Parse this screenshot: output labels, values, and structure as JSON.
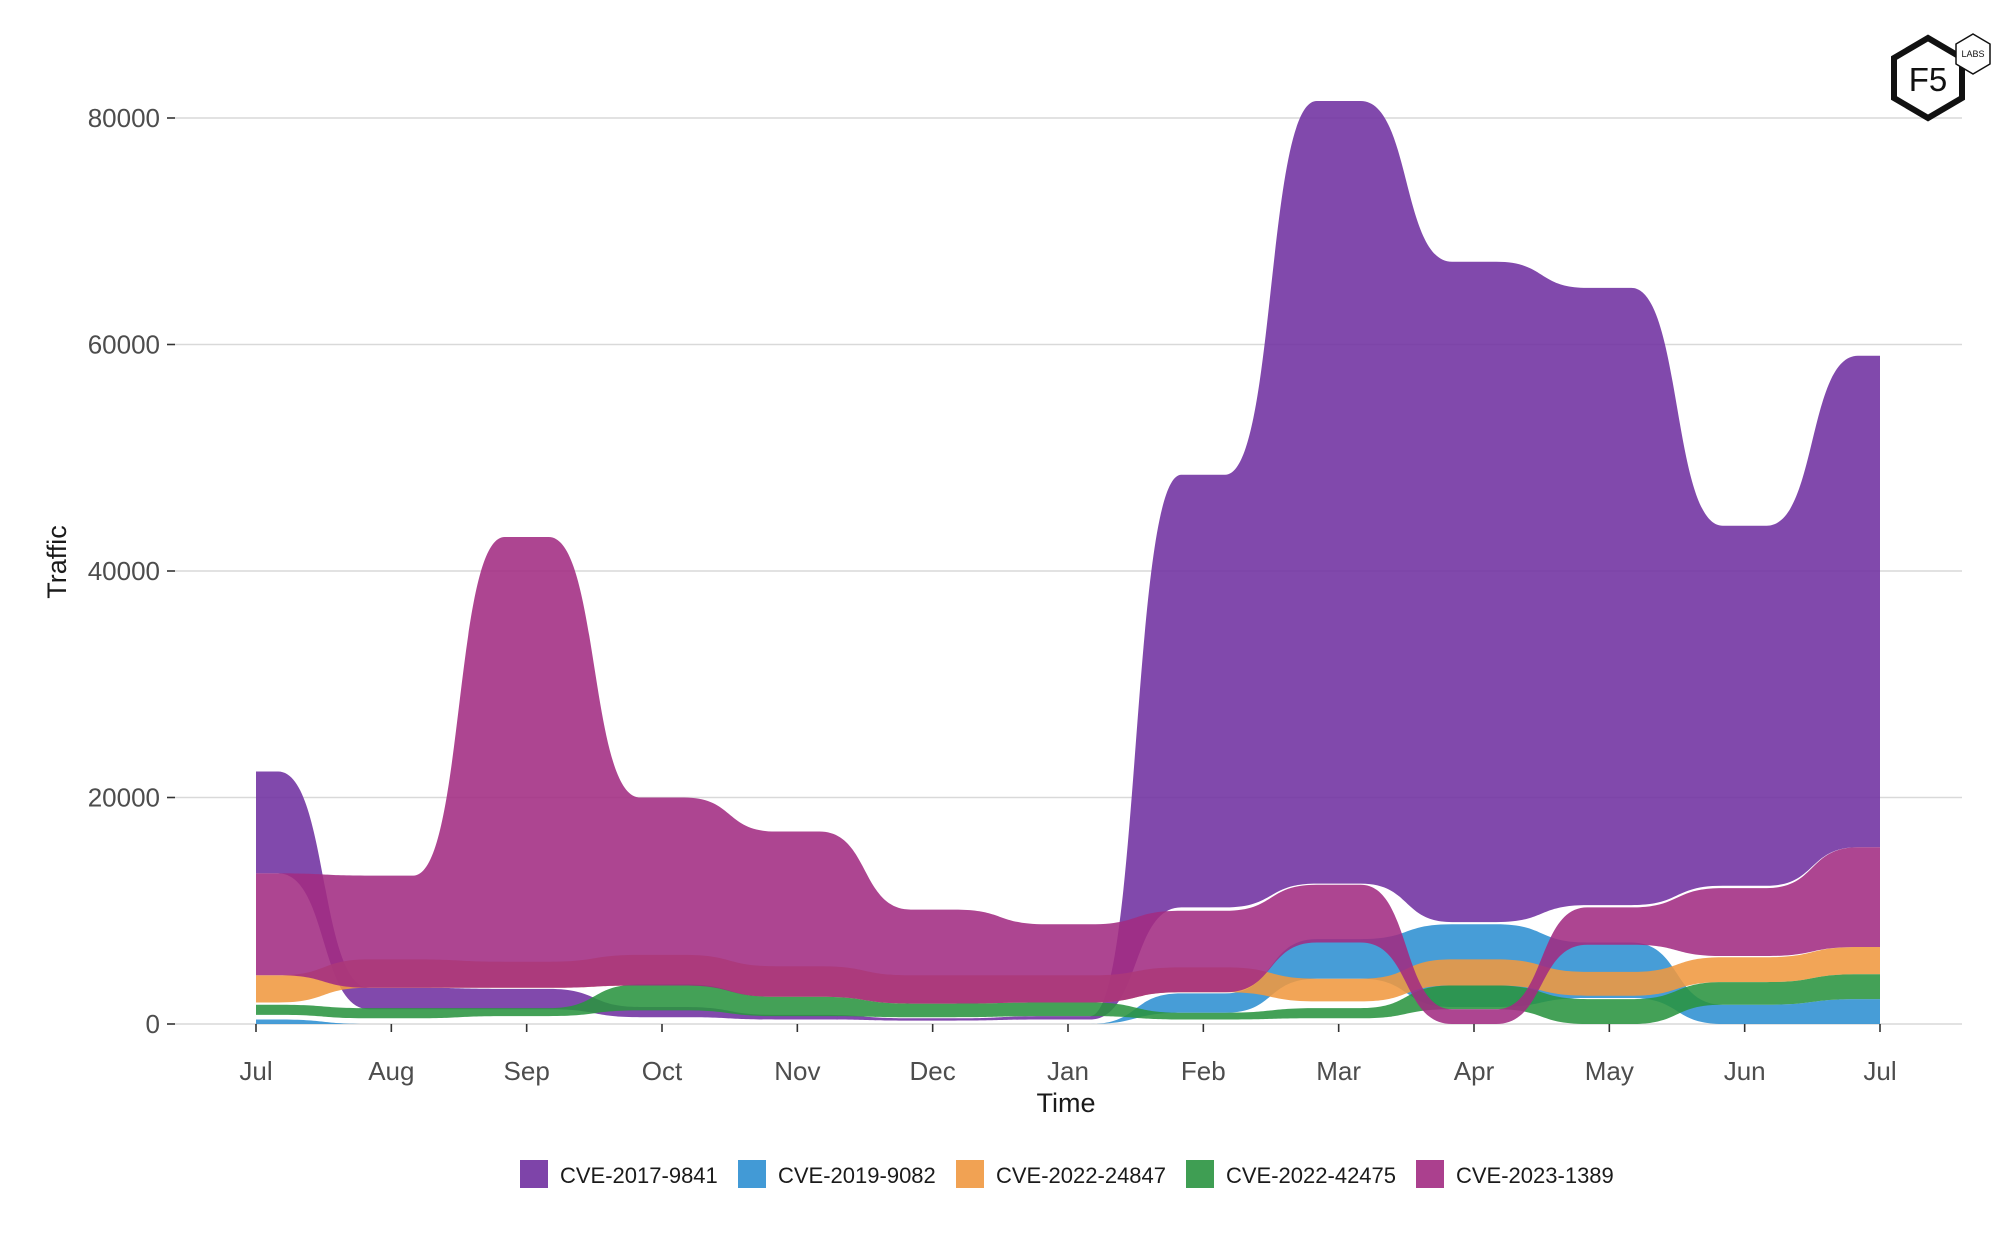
{
  "logo": {
    "brand": "F5",
    "sub": "LABS"
  },
  "chart_data": {
    "type": "area",
    "xlabel": "Time",
    "ylabel": "Traffic",
    "x_tick_labels": [
      "Jul",
      "Aug",
      "Sep",
      "Oct",
      "Nov",
      "Dec",
      "Jan",
      "Feb",
      "Mar",
      "Apr",
      "May",
      "Jun",
      "Jul"
    ],
    "y_ticks": [
      0,
      20000,
      40000,
      60000,
      80000
    ],
    "ylim": [
      0,
      88000
    ],
    "grid": "horizontal",
    "legend_position": "bottom",
    "stacking": "overlapping (ribbons drawn from baseline)",
    "series": [
      {
        "name": "CVE-2017-9841",
        "color": "#7030a0",
        "base": [
          13300,
          1300,
          1300,
          600,
          400,
          300,
          400,
          10300,
          12400,
          9000,
          10500,
          12200,
          15600
        ],
        "value": [
          22300,
          3200,
          3100,
          1500,
          800,
          500,
          700,
          48500,
          81500,
          67300,
          65000,
          44000,
          59000
        ]
      },
      {
        "name": "CVE-2019-9082",
        "color": "#2e8fd1",
        "base": [
          0,
          0,
          0,
          0,
          0,
          0,
          0,
          1000,
          4000,
          1500,
          2300,
          0,
          0
        ],
        "value": [
          400,
          0,
          0,
          0,
          0,
          0,
          0,
          2700,
          7500,
          8800,
          7200,
          1700,
          2200
        ]
      },
      {
        "name": "CVE-2022-24847",
        "color": "#f09840",
        "base": [
          1900,
          3200,
          3200,
          3400,
          2400,
          1800,
          1900,
          2800,
          2000,
          3400,
          2500,
          3700,
          4400
        ],
        "value": [
          4300,
          5700,
          5500,
          6100,
          5100,
          4300,
          4300,
          5000,
          4000,
          5700,
          4600,
          5900,
          6800
        ]
      },
      {
        "name": "CVE-2022-42475",
        "color": "#2a9440",
        "base": [
          800,
          500,
          700,
          1200,
          700,
          600,
          700,
          400,
          500,
          1300,
          0,
          1700,
          2200
        ],
        "value": [
          1700,
          1400,
          1400,
          3500,
          2400,
          1800,
          1900,
          1000,
          1400,
          3400,
          2200,
          3700,
          4400
        ]
      },
      {
        "name": "CVE-2023-1389",
        "color": "#a22b82",
        "base": [
          4300,
          3200,
          3200,
          3400,
          2400,
          1800,
          1900,
          2800,
          7200,
          0,
          7000,
          6000,
          6800
        ],
        "value": [
          13300,
          13100,
          43000,
          20000,
          17000,
          10100,
          8800,
          10000,
          12300,
          1300,
          10300,
          12000,
          15600
        ]
      }
    ]
  }
}
